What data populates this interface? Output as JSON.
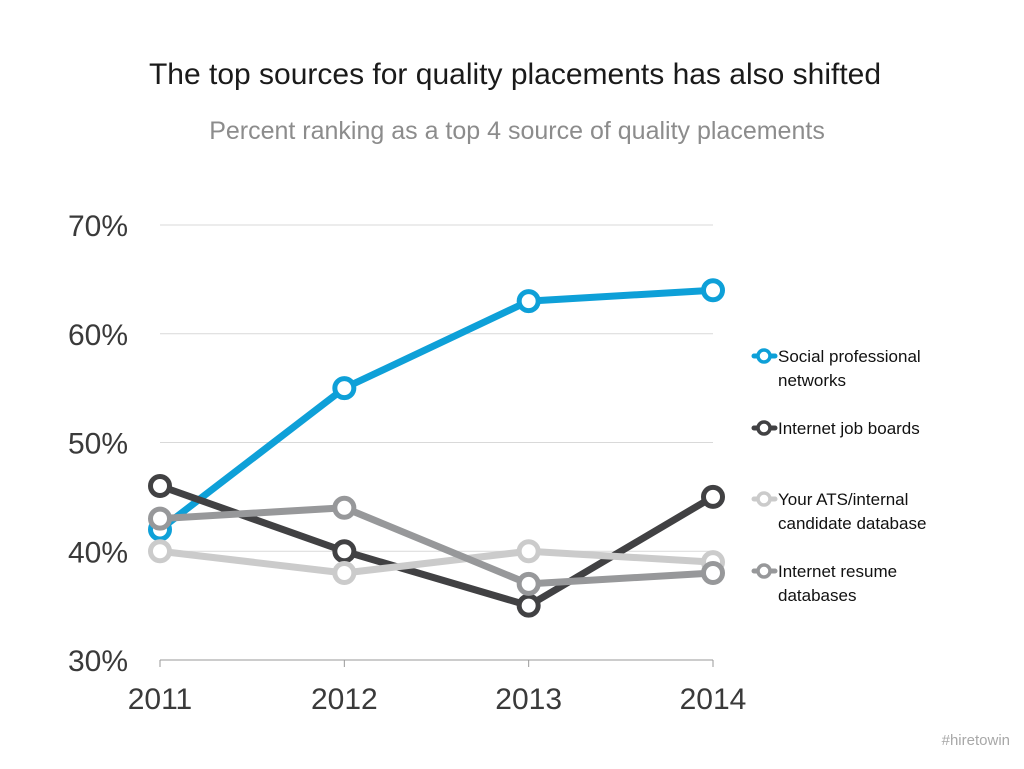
{
  "title": "The top sources for quality placements has also shifted",
  "subtitle": "Percent ranking as a top 4 source of quality placements",
  "footer": "#hiretowin",
  "colors": {
    "grid": "#d9d9d9",
    "axis": "#9a9a9a"
  },
  "chart_data": {
    "type": "line",
    "x": [
      "2011",
      "2012",
      "2013",
      "2014"
    ],
    "ylim": [
      30,
      70
    ],
    "yticks": [
      30,
      40,
      50,
      60,
      70
    ],
    "ytick_labels": [
      "30%",
      "40%",
      "50%",
      "60%",
      "70%"
    ],
    "grid": true,
    "legend_position": "right",
    "series": [
      {
        "name": "Social professional networks",
        "legend_lines": [
          "Social professional",
          "networks"
        ],
        "color": "#0ea0d8",
        "values": [
          42,
          55,
          63,
          64
        ]
      },
      {
        "name": "Internet job boards",
        "legend_lines": [
          "Internet job boards"
        ],
        "color": "#414143",
        "values": [
          46,
          40,
          35,
          45
        ]
      },
      {
        "name": "Your ATS/internal candidate database",
        "legend_lines": [
          "Your ATS/internal",
          "candidate database"
        ],
        "color": "#cbcbcb",
        "values": [
          40,
          38,
          40,
          39
        ]
      },
      {
        "name": "Internet resume databases",
        "legend_lines": [
          "Internet resume",
          "databases"
        ],
        "color": "#97989a",
        "values": [
          43,
          44,
          37,
          38
        ]
      }
    ]
  }
}
